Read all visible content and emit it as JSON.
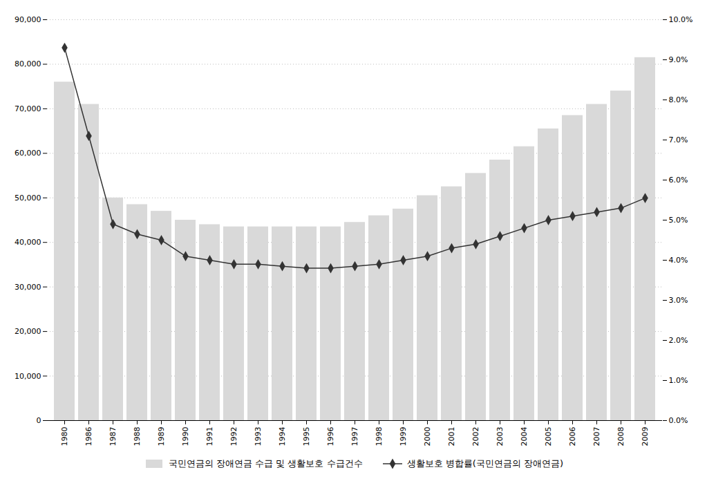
{
  "chart_data": {
    "type": "bar",
    "categories": [
      "1980",
      "1986",
      "1987",
      "1988",
      "1989",
      "1990",
      "1991",
      "1992",
      "1993",
      "1994",
      "1995",
      "1996",
      "1997",
      "1998",
      "1999",
      "2000",
      "2001",
      "2002",
      "2003",
      "2004",
      "2005",
      "2006",
      "2007",
      "2008",
      "2009"
    ],
    "series": [
      {
        "name": "국민연금의 장애연금 수급 및 생활보호 수급건수",
        "type": "bar",
        "color": "#d9d9d9",
        "values": [
          76000,
          71000,
          50000,
          48500,
          47000,
          45000,
          44000,
          43500,
          43500,
          43500,
          43500,
          43500,
          44500,
          46000,
          47500,
          50500,
          52500,
          55500,
          58500,
          61500,
          65500,
          68500,
          71000,
          74000,
          81500
        ]
      },
      {
        "name": "생활보호 병합률(국민연금의 장애연금)",
        "type": "line",
        "color": "#333333",
        "marker": "diamond",
        "axis": "y2",
        "values": [
          9.3,
          7.1,
          4.9,
          4.65,
          4.5,
          4.1,
          4.0,
          3.9,
          3.9,
          3.85,
          3.8,
          3.8,
          3.85,
          3.9,
          4.0,
          4.1,
          4.3,
          4.4,
          4.6,
          4.8,
          5.0,
          5.1,
          5.2,
          5.3,
          5.55
        ]
      }
    ],
    "ylim": [
      0,
      90000
    ],
    "yticks": [
      0,
      {
        "value": 10000,
        "label": "10,000"
      },
      {
        "value": 20000,
        "label": "20,000"
      },
      {
        "value": 30000,
        "label": "30,000"
      },
      {
        "value": 40000,
        "label": "40,000"
      },
      {
        "value": 50000,
        "label": "50,000"
      },
      {
        "value": 60000,
        "label": "60,000"
      },
      {
        "value": 70000,
        "label": "70,000"
      },
      {
        "value": 80000,
        "label": "80,000"
      },
      {
        "value": 90000,
        "label": "90,000"
      }
    ],
    "y2lim": [
      0,
      10
    ],
    "y2ticks": [
      {
        "value": 0,
        "label": "0.0%"
      },
      {
        "value": 1,
        "label": "1.0%"
      },
      {
        "value": 2,
        "label": "2.0%"
      },
      {
        "value": 3,
        "label": "3.0%"
      },
      {
        "value": 4,
        "label": "4.0%"
      },
      {
        "value": 5,
        "label": "5.0%"
      },
      {
        "value": 6,
        "label": "6.0%"
      },
      {
        "value": 7,
        "label": "7.0%"
      },
      {
        "value": 8,
        "label": "8.0%"
      },
      {
        "value": 9,
        "label": "9.0%"
      },
      {
        "value": 10,
        "label": "10.0%"
      }
    ],
    "grid": true,
    "legend": "bottom"
  }
}
